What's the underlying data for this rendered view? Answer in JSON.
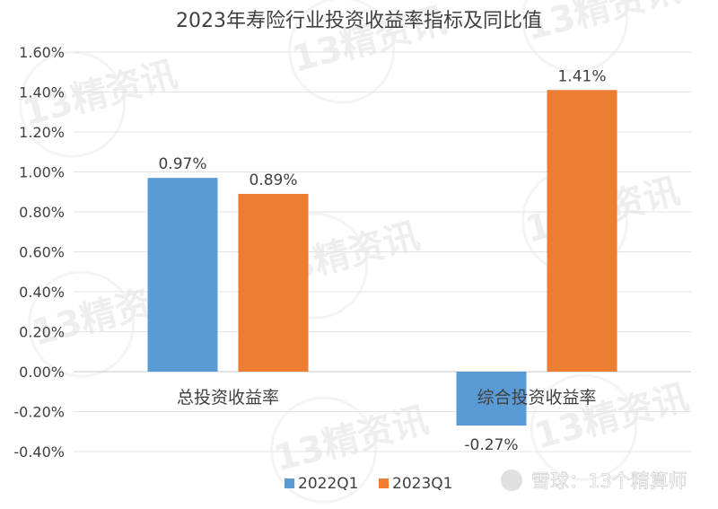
{
  "chart_data": {
    "type": "bar",
    "title": "2023年寿险行业投资收益率指标及同比值",
    "categories": [
      "总投资收益率",
      "综合投资收益率"
    ],
    "series": [
      {
        "name": "2022Q1",
        "values": [
          0.97,
          -0.27
        ],
        "labels": [
          "0.97%",
          "-0.27%"
        ],
        "color": "#5b9bd5"
      },
      {
        "name": "2023Q1",
        "values": [
          0.89,
          1.41
        ],
        "labels": [
          "0.89%",
          "1.41%"
        ],
        "color": "#ed7d31"
      }
    ],
    "ylim": [
      -0.4,
      1.6
    ],
    "yticks": [
      "-0.40%",
      "-0.20%",
      "0.00%",
      "0.20%",
      "0.40%",
      "0.60%",
      "0.80%",
      "1.00%",
      "1.20%",
      "1.40%",
      "1.60%"
    ],
    "grid": true,
    "legend": "bottom"
  },
  "watermarks": {
    "brand": "13精资讯",
    "footer": "雪球：13个精算师"
  }
}
